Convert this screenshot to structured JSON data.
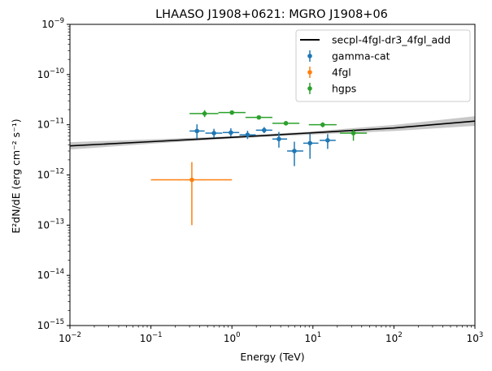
{
  "chart_data": {
    "type": "scatter",
    "title": "LHAASO J1908+0621: MGRO J1908+06",
    "xlabel": "Energy (TeV)",
    "ylabel": "E²dN/dE (erg cm⁻² s⁻¹)",
    "x_scale": "log",
    "y_scale": "log",
    "xlim": [
      0.01,
      1000
    ],
    "ylim": [
      1e-15,
      1e-09
    ],
    "x_ticks": [
      {
        "value": 0.01,
        "base": "10",
        "exp": "−2"
      },
      {
        "value": 0.1,
        "base": "10",
        "exp": "−1"
      },
      {
        "value": 1,
        "base": "10",
        "exp": "0"
      },
      {
        "value": 10,
        "base": "10",
        "exp": "1"
      },
      {
        "value": 100,
        "base": "10",
        "exp": "2"
      },
      {
        "value": 1000,
        "base": "10",
        "exp": "3"
      }
    ],
    "y_ticks": [
      {
        "value": 1e-15,
        "base": "10",
        "exp": "−15"
      },
      {
        "value": 1e-14,
        "base": "10",
        "exp": "−14"
      },
      {
        "value": 1e-13,
        "base": "10",
        "exp": "−13"
      },
      {
        "value": 1e-12,
        "base": "10",
        "exp": "−12"
      },
      {
        "value": 1e-11,
        "base": "10",
        "exp": "−11"
      },
      {
        "value": 1e-10,
        "base": "10",
        "exp": "−10"
      },
      {
        "value": 1e-09,
        "base": "10",
        "exp": "−9"
      }
    ],
    "grid": false,
    "legend_position": "top-right",
    "model": {
      "name": "secpl-4fgl-dr3_4fgl_add",
      "color": "#000000",
      "band_color": "#c8c8c8",
      "line": [
        [
          0.01,
          3.8e-12
        ],
        [
          0.1,
          4.6e-12
        ],
        [
          1,
          5.6e-12
        ],
        [
          10,
          6.9e-12
        ],
        [
          100,
          8.6e-12
        ],
        [
          1000,
          1.18e-11
        ]
      ],
      "band_lower": [
        [
          0.01,
          3.2e-12
        ],
        [
          0.1,
          4.2e-12
        ],
        [
          1,
          5.3e-12
        ],
        [
          10,
          6.4e-12
        ],
        [
          100,
          7.5e-12
        ],
        [
          1000,
          9.5e-12
        ]
      ],
      "band_upper": [
        [
          0.01,
          4.5e-12
        ],
        [
          0.1,
          5.1e-12
        ],
        [
          1,
          5.9e-12
        ],
        [
          10,
          7.4e-12
        ],
        [
          100,
          9.9e-12
        ],
        [
          1000,
          1.48e-11
        ]
      ]
    },
    "series": [
      {
        "name": "gamma-cat",
        "color": "#1f77b4",
        "points": [
          {
            "x": 0.37,
            "y": 7.5e-12,
            "xlo": 0.3,
            "xhi": 0.46,
            "ylo": 5.3e-12,
            "yhi": 1.02e-11
          },
          {
            "x": 0.6,
            "y": 6.8e-12,
            "xlo": 0.47,
            "xhi": 0.76,
            "ylo": 5.5e-12,
            "yhi": 8.3e-12
          },
          {
            "x": 0.97,
            "y": 7e-12,
            "xlo": 0.77,
            "xhi": 1.23,
            "ylo": 5.8e-12,
            "yhi": 8.5e-12
          },
          {
            "x": 1.56,
            "y": 6.3e-12,
            "xlo": 1.24,
            "xhi": 1.97,
            "ylo": 5.2e-12,
            "yhi": 7.6e-12
          },
          {
            "x": 2.5,
            "y": 7.8e-12,
            "xlo": 1.98,
            "xhi": 3.15,
            "ylo": 6.8e-12,
            "yhi": 9e-12
          },
          {
            "x": 3.8,
            "y": 5.2e-12,
            "xlo": 3.16,
            "xhi": 4.8,
            "ylo": 3.5e-12,
            "yhi": 7.2e-12
          },
          {
            "x": 5.9,
            "y": 3e-12,
            "xlo": 4.8,
            "xhi": 7.6,
            "ylo": 1.5e-12,
            "yhi": 4.6e-12
          },
          {
            "x": 9.2,
            "y": 4.3e-12,
            "xlo": 7.6,
            "xhi": 11.7,
            "ylo": 2.1e-12,
            "yhi": 6.6e-12
          },
          {
            "x": 15.2,
            "y": 4.9e-12,
            "xlo": 12.1,
            "xhi": 19.1,
            "ylo": 3.3e-12,
            "yhi": 6.5e-12
          }
        ]
      },
      {
        "name": "4fgl",
        "color": "#ff7f0e",
        "points": [
          {
            "x": 0.32,
            "y": 8e-13,
            "xlo": 0.1,
            "xhi": 1.0,
            "ylo": 1e-13,
            "yhi": 1.8e-12
          }
        ]
      },
      {
        "name": "hgps",
        "color": "#2ca02c",
        "points": [
          {
            "x": 0.46,
            "y": 1.67e-11,
            "xlo": 0.3,
            "xhi": 0.68,
            "ylo": 1.42e-11,
            "yhi": 1.95e-11
          },
          {
            "x": 1.0,
            "y": 1.75e-11,
            "xlo": 0.68,
            "xhi": 1.47,
            "ylo": 1.65e-11,
            "yhi": 1.85e-11
          },
          {
            "x": 2.15,
            "y": 1.4e-11,
            "xlo": 1.47,
            "xhi": 3.16,
            "ylo": 1.3e-11,
            "yhi": 1.5e-11
          },
          {
            "x": 4.64,
            "y": 1.07e-11,
            "xlo": 3.16,
            "xhi": 6.81,
            "ylo": 9.8e-12,
            "yhi": 1.16e-11
          },
          {
            "x": 13.2,
            "y": 1e-11,
            "xlo": 8.9,
            "xhi": 19.6,
            "ylo": 8.9e-12,
            "yhi": 1.12e-11
          },
          {
            "x": 31.6,
            "y": 6.8e-12,
            "xlo": 21.5,
            "xhi": 46.4,
            "ylo": 4.8e-12,
            "yhi": 8.2e-12
          }
        ]
      }
    ]
  }
}
